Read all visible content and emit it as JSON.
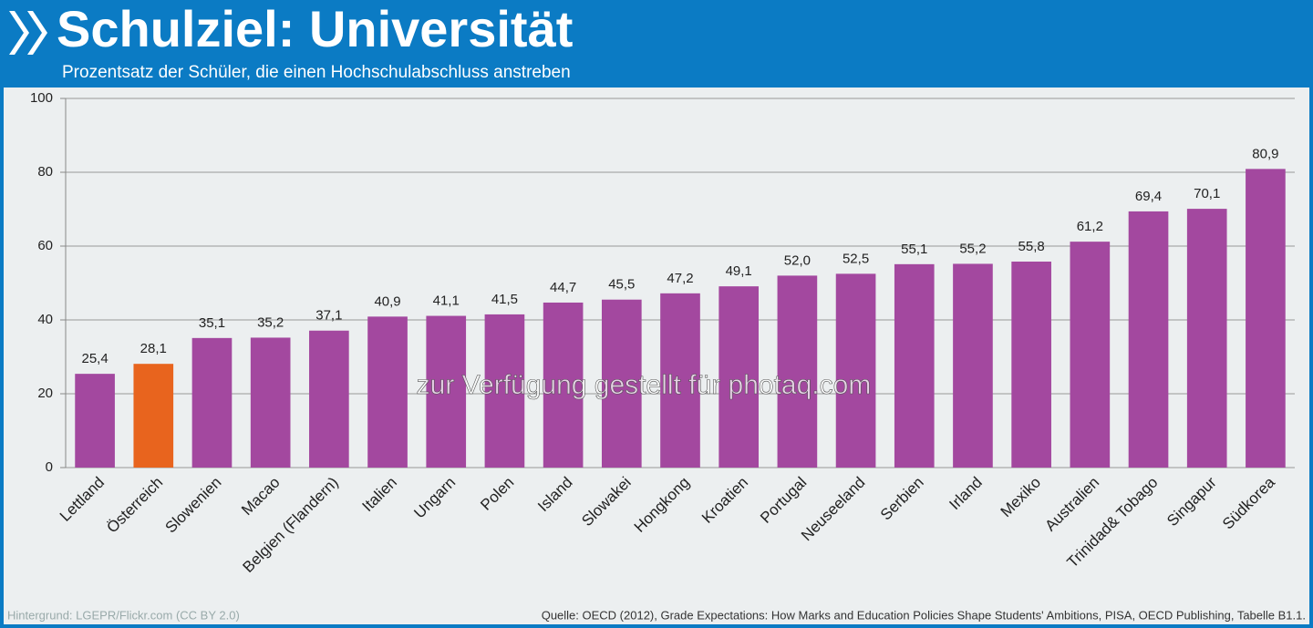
{
  "chart_data": {
    "type": "bar",
    "title": "Schulziel: Universität",
    "subtitle": "Prozentsatz der Schüler, die einen Hochschulabschluss anstreben",
    "categories": [
      "Lettland",
      "Österreich",
      "Slowenien",
      "Macao",
      "Belgien (Flandern)",
      "Italien",
      "Ungarn",
      "Polen",
      "Island",
      "Slowakei",
      "Hongkong",
      "Kroatien",
      "Portugal",
      "Neuseeland",
      "Serbien",
      "Irland",
      "Mexiko",
      "Australien",
      "Trinidad& Tobago",
      "Singapur",
      "Südkorea"
    ],
    "values": [
      25.4,
      28.1,
      35.1,
      35.2,
      37.1,
      40.9,
      41.1,
      41.5,
      44.7,
      45.5,
      47.2,
      49.1,
      52.0,
      52.5,
      55.1,
      55.2,
      55.8,
      61.2,
      69.4,
      70.1,
      80.9
    ],
    "value_labels": [
      "25,4",
      "28,1",
      "35,1",
      "35,2",
      "37,1",
      "40,9",
      "41,1",
      "41,5",
      "44,7",
      "45,5",
      "47,2",
      "49,1",
      "52,0",
      "52,5",
      "55,1",
      "55,2",
      "55,8",
      "61,2",
      "69,4",
      "70,1",
      "80,9"
    ],
    "colors": [
      "#a3489f",
      "#e8641e",
      "#a3489f",
      "#a3489f",
      "#a3489f",
      "#a3489f",
      "#a3489f",
      "#a3489f",
      "#a3489f",
      "#a3489f",
      "#a3489f",
      "#a3489f",
      "#a3489f",
      "#a3489f",
      "#a3489f",
      "#a3489f",
      "#a3489f",
      "#a3489f",
      "#a3489f",
      "#a3489f",
      "#a3489f"
    ],
    "ylim": [
      0,
      100
    ],
    "yticks": [
      0,
      20,
      40,
      60,
      80,
      100
    ],
    "grid": true,
    "watermark": "zur Verfügung gestellt für photaq.com",
    "footer_left": "Hintergrund:  LGEPR/Flickr.com (CC BY 2.0)",
    "footer_right": "Quelle: OECD (2012), Grade Expectations: How Marks and Education Policies Shape Students' Ambitions, PISA, OECD Publishing, Tabelle B1.1."
  }
}
